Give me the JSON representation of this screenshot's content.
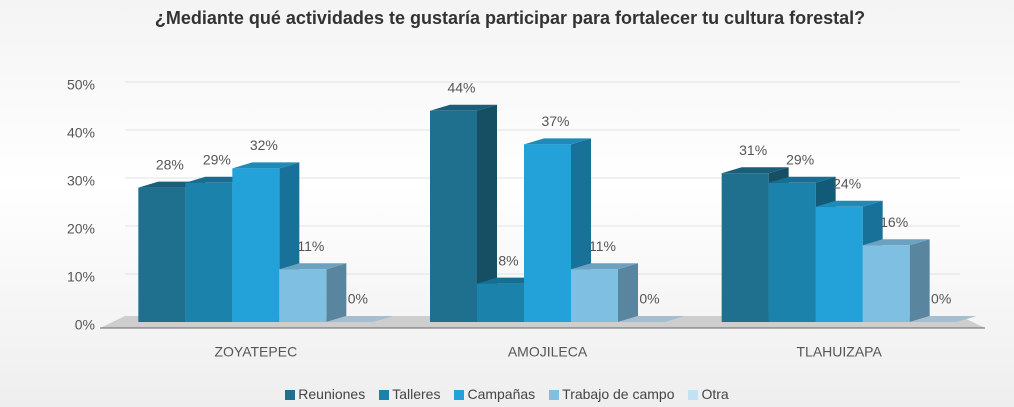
{
  "chart_data": {
    "type": "bar3d",
    "title": "¿Mediante qué actividades te gustaría participar para fortalecer tu cultura forestal?",
    "categories": [
      "ZOYATEPEC",
      "AMOJILECA",
      "TLAHUIZAPA"
    ],
    "series": [
      {
        "name": "Reuniones",
        "color": "#1f6f8f",
        "values": [
          28,
          44,
          31
        ],
        "value_labels": [
          "28%",
          "44%",
          "31%"
        ]
      },
      {
        "name": "Talleres",
        "color": "#1a82ab",
        "values": [
          29,
          8,
          29
        ],
        "value_labels": [
          "29%",
          "8%",
          "29%"
        ]
      },
      {
        "name": "Campañas",
        "color": "#22a2d9",
        "values": [
          32,
          37,
          24
        ],
        "value_labels": [
          "32%",
          "37%",
          "24%"
        ]
      },
      {
        "name": "Trabajo de campo",
        "color": "#7fbfe2",
        "values": [
          11,
          11,
          16
        ],
        "value_labels": [
          "11%",
          "11%",
          "16%"
        ]
      },
      {
        "name": "Otra",
        "color": "#c2e1f3",
        "values": [
          0,
          0,
          0
        ],
        "value_labels": [
          "0%",
          "0%",
          "0%"
        ]
      }
    ],
    "ylim": [
      0,
      50
    ],
    "yticks": [
      {
        "value": 0,
        "label": "0%"
      },
      {
        "value": 10,
        "label": "10%"
      },
      {
        "value": 20,
        "label": "20%"
      },
      {
        "value": 30,
        "label": "30%"
      },
      {
        "value": 40,
        "label": "40%"
      },
      {
        "value": 50,
        "label": "50%"
      }
    ],
    "grid": true
  }
}
